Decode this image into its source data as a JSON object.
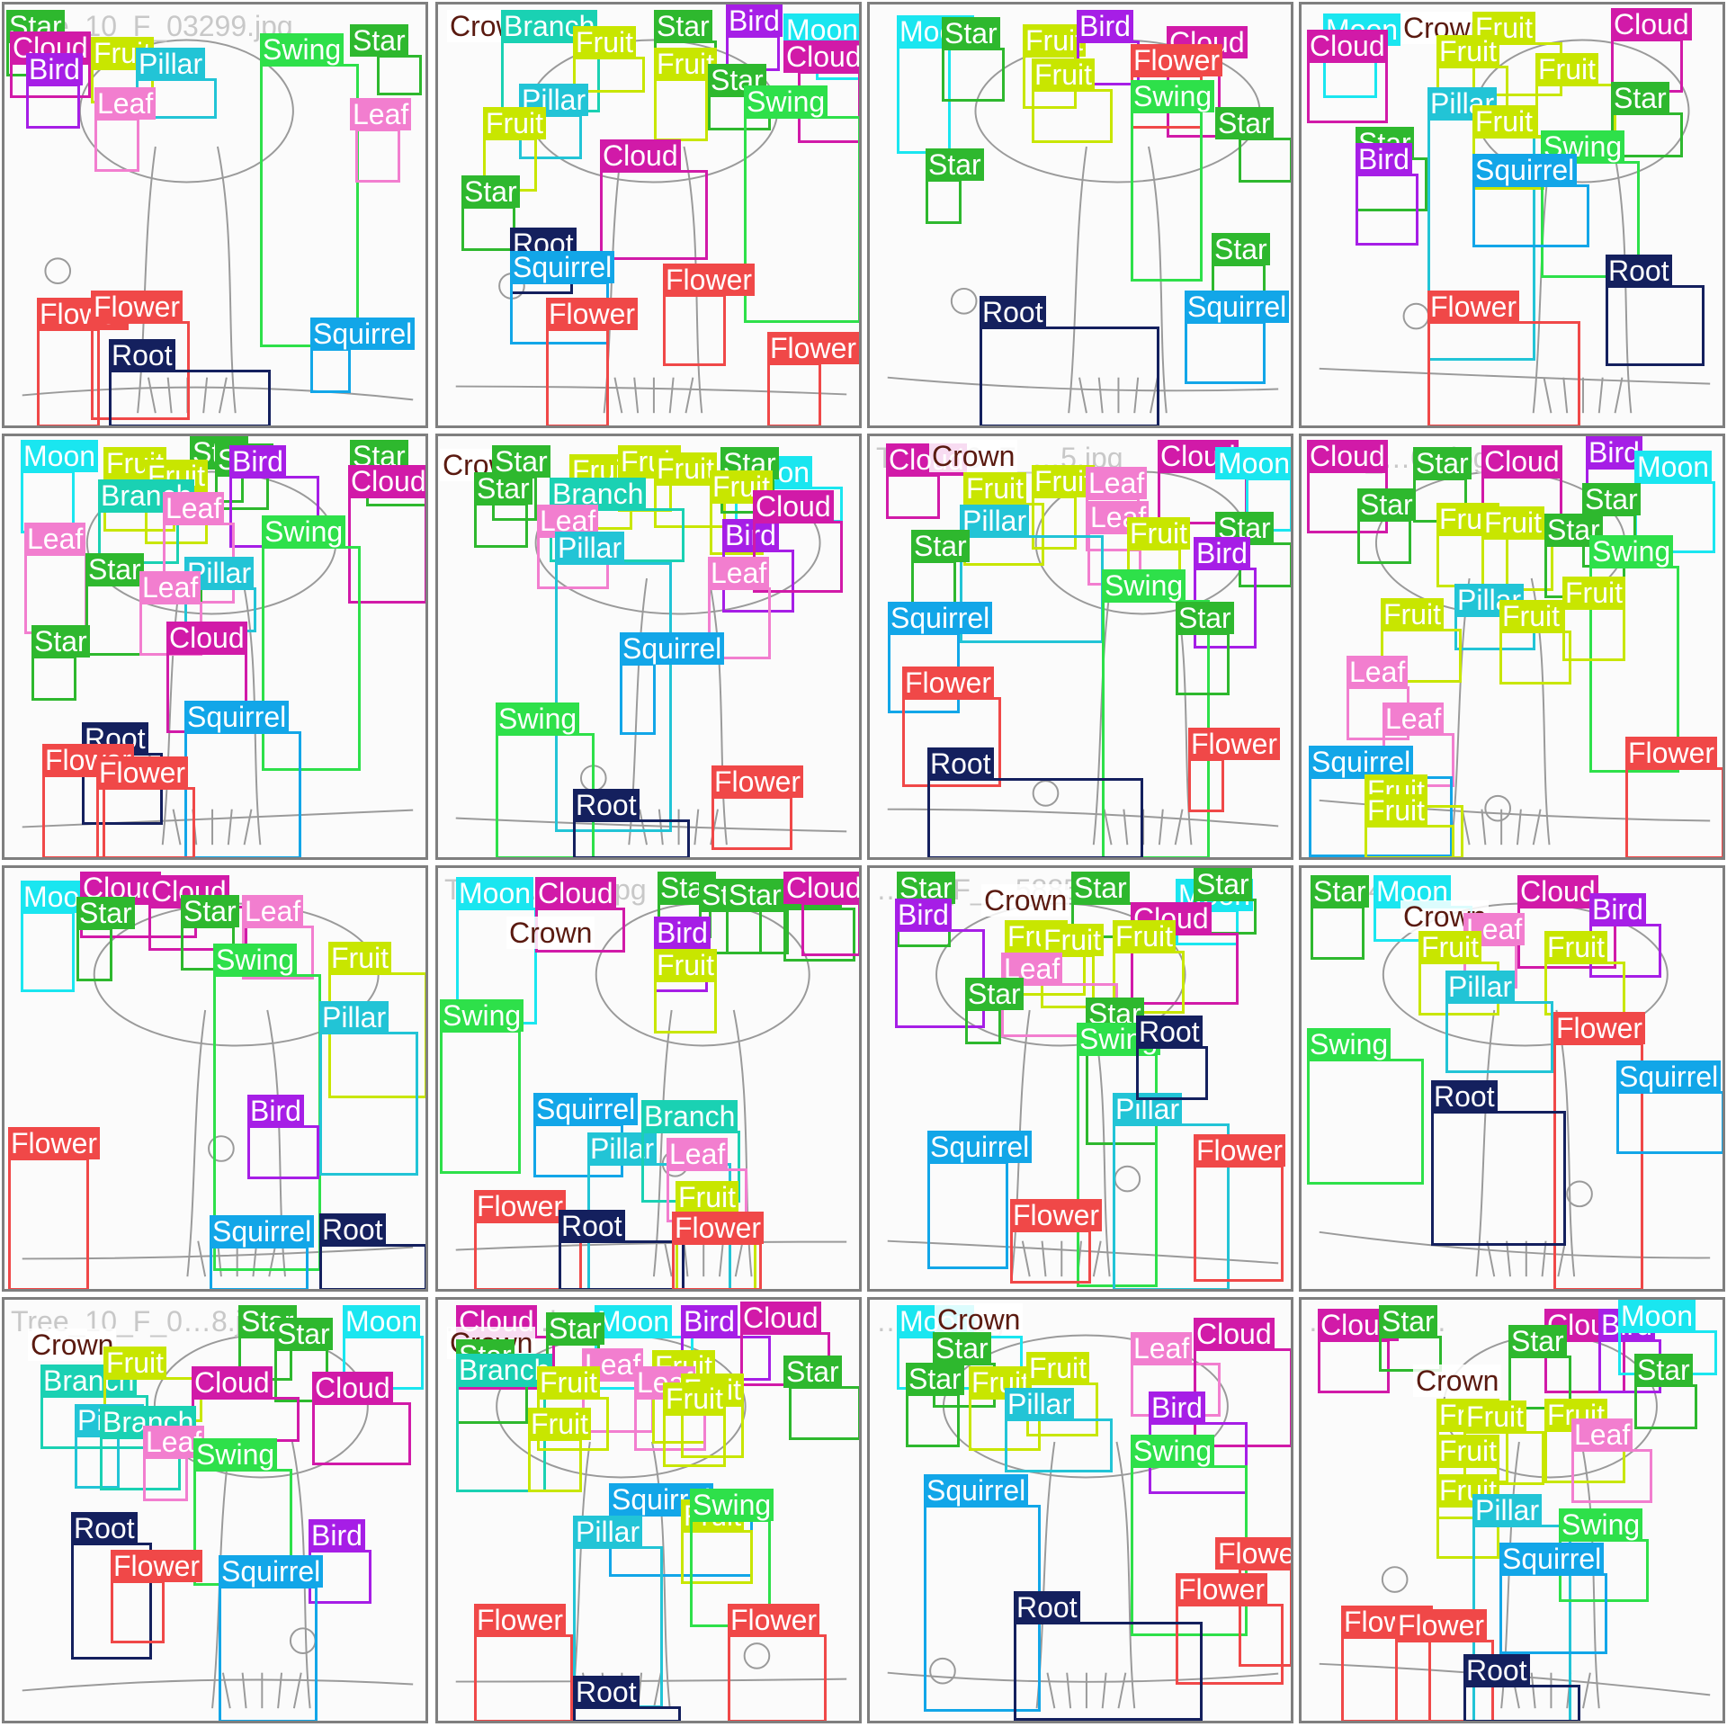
{
  "image_title": "",
  "class_colors": {
    "Star": "#2eb82e",
    "Fruit": "#c8e600",
    "Cloud": "#d11aa8",
    "Bird": "#a61ee6",
    "Moon": "#1ae6f0",
    "Pillar": "#22c4d6",
    "Swing": "#2ee04a",
    "Leaf": "#f27ecf",
    "Flower": "#f04848",
    "Squirrel": "#12a6e8",
    "Root": "#14205e",
    "Branch": "#1ad1b3",
    "Crown": "#f5f5f5",
    "Trunk": "#1c3fd4"
  },
  "tiles": [
    {
      "filename_fragment": "Tree_10_F_03299.jpg",
      "labels": [
        "Star",
        "Cloud",
        "Bird",
        "Fruit",
        "Pillar",
        "Swing",
        "Star",
        "Leaf",
        "Leaf",
        "Flower",
        "Flower",
        "Root",
        "Squirrel"
      ]
    },
    {
      "filename_fragment": "",
      "labels": [
        "Crown",
        "Branch",
        "Star",
        "Bird",
        "Moon",
        "Cloud",
        "Fruit",
        "Fruit",
        "Star",
        "Swing",
        "Pillar",
        "Fruit",
        "Cloud",
        "Star",
        "Root",
        "Squirrel",
        "Flower",
        "Flower",
        "Flower"
      ]
    },
    {
      "filename_fragment": "",
      "labels": [
        "Moon",
        "Star",
        "Fruit",
        "Bird",
        "Cloud",
        "Fruit",
        "Flower",
        "Swing",
        "Star",
        "Star",
        "Star",
        "Root",
        "Squirrel"
      ]
    },
    {
      "filename_fragment": "",
      "labels": [
        "Moon",
        "Crown",
        "Fruit",
        "Cloud",
        "Cloud",
        "Fruit",
        "Fruit",
        "Star",
        "Pillar",
        "Fruit",
        "Star",
        "Bird",
        "Swing",
        "Squirrel",
        "Root",
        "Flower"
      ]
    },
    {
      "filename_fragment": "",
      "labels": [
        "Moon",
        "Star",
        "Star",
        "Star",
        "Cloud",
        "Fruit",
        "Fruit",
        "Bird",
        "Branch",
        "Leaf",
        "Leaf",
        "Swing",
        "Star",
        "Pillar",
        "Leaf",
        "Star",
        "Cloud",
        "Squirrel",
        "Root",
        "Flower",
        "Flower"
      ]
    },
    {
      "filename_fragment": "",
      "labels": [
        "Crown",
        "Star",
        "Star",
        "Moon",
        "Fruit",
        "Fruit",
        "Fruit",
        "Star",
        "Branch",
        "Fruit",
        "Leaf",
        "Bird",
        "Cloud",
        "Pillar",
        "Leaf",
        "Squirrel",
        "Swing",
        "Root",
        "Flower"
      ]
    },
    {
      "filename_fragment": "Tree_10_F_…5.jpg",
      "labels": [
        "Cloud",
        "Crown",
        "Cloud",
        "Moon",
        "Fruit",
        "Fruit",
        "Leaf",
        "Leaf",
        "Fruit",
        "Pillar",
        "Star",
        "Bird",
        "Star",
        "Swing",
        "Star",
        "Squirrel",
        "Flower",
        "Root",
        "Flower"
      ]
    },
    {
      "filename_fragment": "Tree_…06.jpg",
      "labels": [
        "Cloud",
        "Cloud",
        "Star",
        "Bird",
        "Moon",
        "Star",
        "Star",
        "Fruit",
        "Fruit",
        "Star",
        "Swing",
        "Fruit",
        "Pillar",
        "Fruit",
        "Fruit",
        "Leaf",
        "Leaf",
        "Squirrel",
        "Fruit",
        "Fruit",
        "Flower"
      ]
    },
    {
      "filename_fragment": "",
      "labels": [
        "Moon",
        "Cloud",
        "Cloud",
        "Star",
        "Star",
        "Leaf",
        "Swing",
        "Fruit",
        "Pillar",
        "Bird",
        "Flower",
        "Squirrel",
        "Root"
      ]
    },
    {
      "filename_fragment": "Tree_…02…jpg",
      "labels": [
        "Moon",
        "Cloud",
        "Crown",
        "Star",
        "Star",
        "Star",
        "Star",
        "Cloud",
        "Bird",
        "Fruit",
        "Swing",
        "Squirrel",
        "Pillar",
        "Branch",
        "Leaf",
        "Fruit",
        "Flower",
        "Root",
        "Flower"
      ]
    },
    {
      "filename_fragment": "…10_F_…5885",
      "labels": [
        "Star",
        "Bird",
        "Crown",
        "Star",
        "Moon",
        "Star",
        "Cloud",
        "Fruit",
        "Fruit",
        "Fruit",
        "Leaf",
        "Star",
        "Star",
        "Swing",
        "Pillar",
        "Squirrel",
        "Flower",
        "Flower",
        "Root"
      ]
    },
    {
      "filename_fragment": "…024…jpg",
      "labels": [
        "Star",
        "Moon",
        "Cloud",
        "Bird",
        "Crown",
        "Leaf",
        "Fruit",
        "Fruit",
        "Pillar",
        "Swing",
        "Flower",
        "Squirrel",
        "Root"
      ]
    },
    {
      "filename_fragment": "Tree_10_F_0…8.jpg",
      "labels": [
        "Crown",
        "Star",
        "Star",
        "Moon",
        "Branch",
        "Fruit",
        "Cloud",
        "Cloud",
        "Pillar",
        "Branch",
        "Leaf",
        "Swing",
        "Root",
        "Bird",
        "Flower",
        "Squirrel"
      ]
    },
    {
      "filename_fragment": "…020…jpg",
      "labels": [
        "Cloud",
        "Crown",
        "Moon",
        "Bird",
        "Cloud",
        "Star",
        "Star",
        "Branch",
        "Leaf",
        "Fruit",
        "Leaf",
        "Fruit",
        "Fruit",
        "Star",
        "Fruit",
        "Fruit",
        "Squirrel",
        "Pillar",
        "Fruit",
        "Swing",
        "Flower",
        "Root",
        "Flower"
      ]
    },
    {
      "filename_fragment": "…/…2.jpg",
      "labels": [
        "Moon",
        "Crown",
        "Star",
        "Star",
        "Fruit",
        "Fruit",
        "Leaf",
        "Cloud",
        "Pillar",
        "Bird",
        "Swing",
        "Squirrel",
        "Flower",
        "Flower",
        "Root"
      ]
    },
    {
      "filename_fragment": "…0_F_0…",
      "labels": [
        "Cloud",
        "Star",
        "Cloud",
        "Bird",
        "Moon",
        "Star",
        "Star",
        "Crown",
        "Fruit",
        "Fruit",
        "Fruit",
        "Leaf",
        "Fruit",
        "Fruit",
        "Pillar",
        "Swing",
        "Squirrel",
        "Flower",
        "Flower",
        "Root"
      ]
    }
  ]
}
